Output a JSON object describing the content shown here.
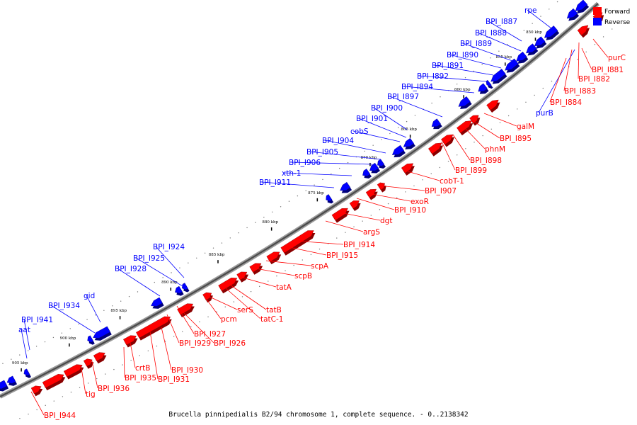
{
  "caption": "Brucella pinnipedialis B2/94 chromosome 1, complete sequence. - 0..2138342",
  "legend": {
    "forward": {
      "label": "Forward",
      "color": "#ff0000"
    },
    "reverse": {
      "label": "Reverse",
      "color": "#0000ff"
    }
  },
  "ticks": [
    "850 kbp",
    "855 kbp",
    "860 kbp",
    "865 kbp",
    "870 kbp",
    "875 kbp",
    "880 kbp",
    "885 kbp",
    "890 kbp",
    "895 kbp",
    "900 kbp",
    "905 kbp"
  ],
  "forward_labels": [
    "purC",
    "BPI_I881",
    "BPI_I882",
    "BPI_I883",
    "BPI_I884",
    "galM",
    "BPI_I895",
    "phnM",
    "BPI_I898",
    "BPI_I899",
    "cobT-1",
    "BPI_I907",
    "exoR",
    "BPI_I910",
    "dgt",
    "argS",
    "BPI_I914",
    "BPI_I915",
    "scpA",
    "scpB",
    "tatA",
    "tatB",
    "tatC-1",
    "serS",
    "pcm",
    "BPI_I926",
    "BPI_I927",
    "BPI_I929",
    "BPI_I930",
    "BPI_I931",
    "crtB",
    "BPI_I935",
    "BPI_I936",
    "tig",
    "BPI_I944"
  ],
  "reverse_labels": [
    "rpe",
    "BPI_I887",
    "BPI_I888",
    "BPI_I889",
    "BPI_I890",
    "BPI_I891",
    "BPI_I892",
    "BPI_I894",
    "BPI_I897",
    "BPI_I900",
    "BPI_I901",
    "cobS",
    "BPI_I904",
    "BPI_I905",
    "BPI_I906",
    "xth-1",
    "BPI_I911",
    "BPI_I924",
    "BPI_I925",
    "BPI_I928",
    "gid",
    "BPI_I934",
    "BPI_I941",
    "aat",
    "purB"
  ]
}
